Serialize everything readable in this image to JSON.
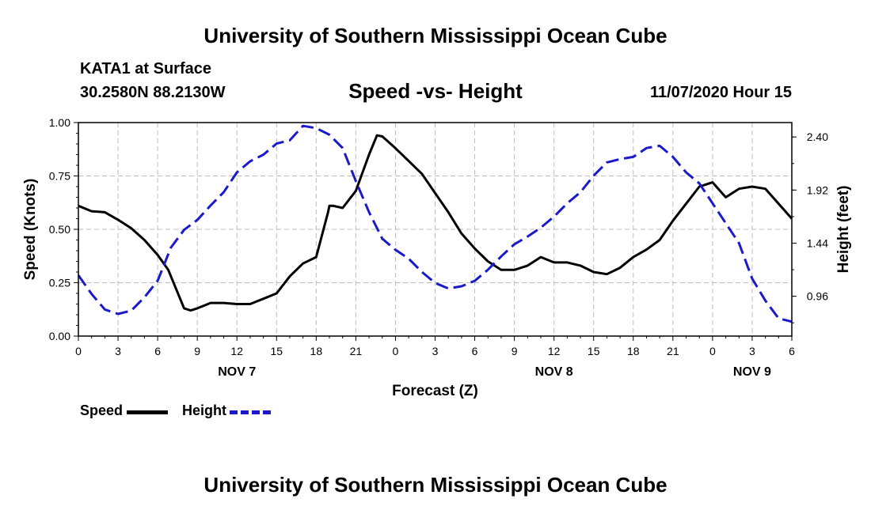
{
  "header": {
    "title": "University of Southern Mississippi Ocean Cube",
    "station": "KATA1 at Surface",
    "coords": "30.2580N 88.2130W",
    "chart_title": "Speed -vs- Height",
    "timestamp": "11/07/2020 Hour 15"
  },
  "footer": {
    "title": "University of Southern Mississippi Ocean Cube"
  },
  "legend": {
    "speed_label": "Speed",
    "height_label": "Height"
  },
  "colors": {
    "speed": "#000000",
    "height": "#1a1acc",
    "grid": "#bbbbbb"
  },
  "chart_data": {
    "type": "line",
    "title": "Speed -vs- Height",
    "xlabel": "Forecast (Z)",
    "ylabel": "Speed (Knots)",
    "y2label": "Height (feet)",
    "xlim": [
      0,
      54
    ],
    "ylim": [
      0,
      1.0
    ],
    "y2lim": [
      0.6,
      2.53
    ],
    "grid": true,
    "x_ticks": [
      0,
      3,
      6,
      9,
      12,
      15,
      18,
      21,
      24,
      27,
      30,
      33,
      36,
      39,
      42,
      45,
      48,
      51,
      54
    ],
    "x_tick_labels": [
      "0",
      "3",
      "6",
      "9",
      "12",
      "15",
      "18",
      "21",
      "0",
      "3",
      "6",
      "9",
      "12",
      "15",
      "18",
      "21",
      "0",
      "3",
      "6"
    ],
    "day_labels": [
      {
        "x": 12,
        "label": "NOV 7"
      },
      {
        "x": 36,
        "label": "NOV 8"
      },
      {
        "x": 51,
        "label": "NOV 9"
      }
    ],
    "y_ticks": [
      0.0,
      0.25,
      0.5,
      0.75,
      1.0
    ],
    "y_tick_labels": [
      "0.00",
      "0.25",
      "0.50",
      "0.75",
      "1.00"
    ],
    "y2_ticks": [
      0.96,
      1.44,
      1.92,
      2.4
    ],
    "y2_tick_labels": [
      "0.96",
      "1.44",
      "1.92",
      "2.40"
    ],
    "series": [
      {
        "name": "Speed",
        "axis": "left",
        "style": "solid",
        "x": [
          0,
          1,
          2,
          3,
          4,
          5,
          6,
          6.8,
          7.4,
          8,
          8.5,
          9,
          10,
          11,
          12,
          13,
          14,
          15,
          16,
          17,
          18,
          18.9,
          19,
          19.3,
          20,
          21,
          22,
          22.6,
          23,
          24,
          25,
          26,
          27,
          28,
          29,
          30,
          31,
          32,
          33,
          34,
          35,
          36,
          37,
          38,
          39,
          40,
          41,
          42,
          43,
          44,
          45,
          46,
          47,
          48,
          49,
          50,
          51,
          52,
          53,
          54
        ],
        "values": [
          0.61,
          0.585,
          0.58,
          0.545,
          0.505,
          0.45,
          0.38,
          0.31,
          0.22,
          0.13,
          0.12,
          0.13,
          0.155,
          0.155,
          0.15,
          0.15,
          0.175,
          0.2,
          0.28,
          0.34,
          0.37,
          0.58,
          0.61,
          0.61,
          0.6,
          0.68,
          0.85,
          0.94,
          0.935,
          0.88,
          0.82,
          0.76,
          0.67,
          0.58,
          0.48,
          0.41,
          0.35,
          0.31,
          0.31,
          0.33,
          0.37,
          0.345,
          0.345,
          0.33,
          0.3,
          0.29,
          0.32,
          0.37,
          0.405,
          0.45,
          0.54,
          0.62,
          0.7,
          0.72,
          0.65,
          0.69,
          0.7,
          0.69,
          0.62,
          0.55
        ]
      },
      {
        "name": "Height",
        "axis": "right",
        "style": "dashed",
        "x": [
          0,
          1,
          2,
          3,
          4,
          5,
          6,
          7,
          8,
          9,
          10,
          11,
          12,
          13,
          14,
          15,
          16,
          17,
          18,
          19,
          20,
          21,
          22,
          23,
          24,
          25,
          26,
          27,
          28,
          29,
          30,
          31,
          32,
          33,
          34,
          35,
          36,
          37,
          38,
          39,
          40,
          41,
          42,
          43,
          44,
          45,
          46,
          47,
          48,
          49,
          50,
          51,
          52,
          53,
          54
        ],
        "values": [
          1.15,
          0.98,
          0.84,
          0.8,
          0.83,
          0.95,
          1.1,
          1.4,
          1.56,
          1.65,
          1.78,
          1.9,
          2.08,
          2.18,
          2.24,
          2.34,
          2.37,
          2.5,
          2.48,
          2.42,
          2.3,
          2.0,
          1.72,
          1.48,
          1.38,
          1.3,
          1.18,
          1.08,
          1.03,
          1.05,
          1.1,
          1.2,
          1.32,
          1.43,
          1.5,
          1.58,
          1.68,
          1.8,
          1.9,
          2.05,
          2.17,
          2.2,
          2.22,
          2.3,
          2.32,
          2.22,
          2.08,
          1.98,
          1.8,
          1.62,
          1.44,
          1.12,
          0.92,
          0.76,
          0.73
        ]
      }
    ]
  }
}
